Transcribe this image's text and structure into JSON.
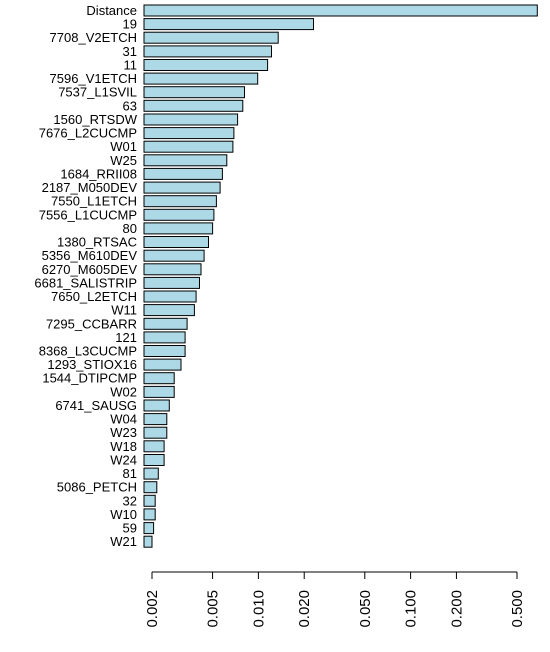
{
  "chart_data": {
    "type": "bar",
    "orientation": "horizontal",
    "x_scale": "log",
    "xlim": [
      0.002,
      0.7
    ],
    "grid": false,
    "legend": "none",
    "bar_color": "#add8e6",
    "categories": [
      "Distance",
      "19",
      "7708_V2ETCH",
      "31",
      "11",
      "7596_V1ETCH",
      "7537_L1SVIL",
      "63",
      "1560_RTSDW",
      "7676_L2CUCMP",
      "W01",
      "W25",
      "1684_RRII08",
      "2187_M050DEV",
      "7550_L1ETCH",
      "7556_L1CUCMP",
      "80",
      "1380_RTSAC",
      "5356_M610DEV",
      "6270_M605DEV",
      "6681_SALISTRIP",
      "7650_L2ETCH",
      "W11",
      "7295_CCBARR",
      "121",
      "8368_L3CUCMP",
      "1293_STIOX16",
      "1544_DTIPCMP",
      "W02",
      "6741_SAUSG",
      "W04",
      "W23",
      "W18",
      "W24",
      "81",
      "5086_PETCH",
      "32",
      "W10",
      "59",
      "W21"
    ],
    "values": [
      0.68,
      0.023,
      0.0135,
      0.0122,
      0.0115,
      0.0099,
      0.0081,
      0.0079,
      0.0073,
      0.0069,
      0.0068,
      0.0062,
      0.0058,
      0.0056,
      0.0053,
      0.0051,
      0.005,
      0.0047,
      0.0044,
      0.0042,
      0.0041,
      0.0039,
      0.0038,
      0.0034,
      0.0033,
      0.0033,
      0.0031,
      0.0028,
      0.0028,
      0.0026,
      0.0025,
      0.0025,
      0.0024,
      0.0024,
      0.0022,
      0.00215,
      0.0021,
      0.0021,
      0.00205,
      0.002
    ],
    "x_ticks": [
      0.002,
      0.005,
      0.01,
      0.02,
      0.05,
      0.1,
      0.2,
      0.5
    ],
    "x_tick_labels": [
      "0.002",
      "0.005",
      "0.010",
      "0.020",
      "0.050",
      "0.100",
      "0.200",
      "0.500"
    ],
    "title": "",
    "xlabel": "",
    "ylabel": ""
  }
}
